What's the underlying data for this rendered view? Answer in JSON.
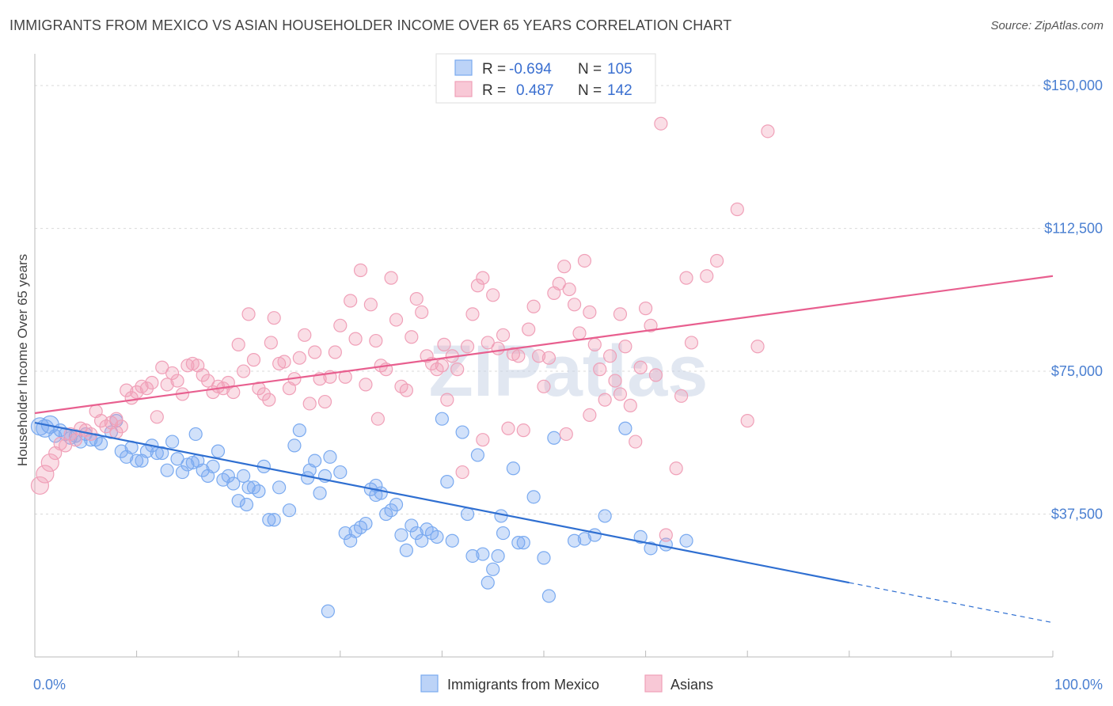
{
  "title": "IMMIGRANTS FROM MEXICO VS ASIAN HOUSEHOLDER INCOME OVER 65 YEARS CORRELATION CHART",
  "source": "Source: ZipAtlas.com",
  "watermark": "ZIPatlas",
  "chart_data": {
    "type": "scatter",
    "title": "IMMIGRANTS FROM MEXICO VS ASIAN HOUSEHOLDER INCOME OVER 65 YEARS CORRELATION CHART",
    "xlabel": "",
    "ylabel": "Householder Income Over 65 years",
    "xlim": [
      0,
      100
    ],
    "ylim": [
      0,
      157500
    ],
    "x_tick_labels": [
      "0.0%",
      "100.0%"
    ],
    "y_ticks": [
      {
        "value": 37500,
        "label": "$37,500"
      },
      {
        "value": 75000,
        "label": "$75,000"
      },
      {
        "value": 112500,
        "label": "$112,500"
      },
      {
        "value": 150000,
        "label": "$150,000"
      }
    ],
    "grid": true,
    "legend_position": "top-center",
    "stats": [
      {
        "r_label": "R =",
        "r_value": "-0.694",
        "n_label": "N =",
        "n_value": "105"
      },
      {
        "r_label": "R =",
        "r_value": "0.487",
        "n_label": "N =",
        "n_value": "142"
      }
    ],
    "series": [
      {
        "name": "Immigrants from Mexico",
        "color": "#7aaaf0",
        "line_color": "#2f6fd1",
        "trend": {
          "x": [
            0,
            80
          ],
          "y": [
            61500,
            19500
          ],
          "dashed_to": [
            100,
            9000
          ]
        },
        "points": [
          [
            0.5,
            60500
          ],
          [
            1,
            60000
          ],
          [
            1.5,
            61000
          ],
          [
            2,
            58000
          ],
          [
            2.5,
            59500
          ],
          [
            3,
            58500
          ],
          [
            3.5,
            57500
          ],
          [
            4,
            58000
          ],
          [
            4.5,
            56500
          ],
          [
            5,
            58500
          ],
          [
            5.5,
            57000
          ],
          [
            6,
            57000
          ],
          [
            6.5,
            56000
          ],
          [
            7.5,
            59000
          ],
          [
            8,
            62000
          ],
          [
            8.5,
            54000
          ],
          [
            9,
            52500
          ],
          [
            9.5,
            55000
          ],
          [
            10,
            51500
          ],
          [
            10.5,
            51500
          ],
          [
            11,
            54000
          ],
          [
            11.5,
            55500
          ],
          [
            12,
            53500
          ],
          [
            12.5,
            53500
          ],
          [
            13,
            49000
          ],
          [
            13.5,
            56500
          ],
          [
            14,
            52000
          ],
          [
            14.5,
            48500
          ],
          [
            15,
            50500
          ],
          [
            15.5,
            51000
          ],
          [
            16,
            51500
          ],
          [
            16.5,
            49000
          ],
          [
            17,
            47500
          ],
          [
            17.5,
            50000
          ],
          [
            18,
            54000
          ],
          [
            18.5,
            46500
          ],
          [
            19,
            47500
          ],
          [
            19.5,
            45500
          ],
          [
            20,
            41000
          ],
          [
            20.5,
            47500
          ],
          [
            21,
            44500
          ],
          [
            21.5,
            44500
          ],
          [
            22,
            43500
          ],
          [
            22.5,
            50000
          ],
          [
            23,
            36000
          ],
          [
            23.5,
            36000
          ],
          [
            24,
            44500
          ],
          [
            25,
            38500
          ],
          [
            25.5,
            55500
          ],
          [
            26,
            59500
          ],
          [
            27,
            49000
          ],
          [
            27.5,
            51500
          ],
          [
            28,
            43000
          ],
          [
            28.5,
            47500
          ],
          [
            29,
            52500
          ],
          [
            30,
            48500
          ],
          [
            30.5,
            32500
          ],
          [
            31,
            30500
          ],
          [
            31.5,
            33000
          ],
          [
            32,
            34000
          ],
          [
            32.5,
            35000
          ],
          [
            33,
            44000
          ],
          [
            33.5,
            42500
          ],
          [
            34,
            43000
          ],
          [
            34.5,
            37500
          ],
          [
            35,
            38500
          ],
          [
            35.5,
            40000
          ],
          [
            36,
            32000
          ],
          [
            36.5,
            28000
          ],
          [
            37,
            34500
          ],
          [
            37.5,
            32500
          ],
          [
            38,
            30500
          ],
          [
            39,
            32500
          ],
          [
            39.5,
            31500
          ],
          [
            40,
            62500
          ],
          [
            40.5,
            46000
          ],
          [
            41,
            30500
          ],
          [
            42,
            59000
          ],
          [
            42.5,
            37500
          ],
          [
            43,
            26500
          ],
          [
            43.5,
            53000
          ],
          [
            44,
            27000
          ],
          [
            44.5,
            19500
          ],
          [
            45,
            23000
          ],
          [
            45.5,
            26500
          ],
          [
            46,
            32500
          ],
          [
            47,
            49500
          ],
          [
            47.5,
            30000
          ],
          [
            48,
            30000
          ],
          [
            49,
            42000
          ],
          [
            50,
            26000
          ],
          [
            50.5,
            16000
          ],
          [
            51,
            57500
          ],
          [
            53,
            30500
          ],
          [
            54,
            31000
          ],
          [
            55,
            32000
          ],
          [
            58,
            60000
          ],
          [
            59.5,
            31500
          ],
          [
            60.5,
            28500
          ],
          [
            62,
            29500
          ],
          [
            64,
            30500
          ],
          [
            56,
            37000
          ],
          [
            45.8,
            37000
          ],
          [
            28.8,
            12000
          ],
          [
            26.8,
            47000
          ],
          [
            20.8,
            40000
          ],
          [
            15.8,
            58500
          ],
          [
            38.5,
            33500
          ],
          [
            33.5,
            45000
          ]
        ]
      },
      {
        "name": "Asians",
        "color": "#f0a0b8",
        "line_color": "#e85f8f",
        "trend": {
          "x": [
            0,
            100
          ],
          "y": [
            64000,
            100000
          ]
        },
        "points": [
          [
            0.5,
            45000
          ],
          [
            1,
            48000
          ],
          [
            1.5,
            51000
          ],
          [
            2,
            53500
          ],
          [
            2.5,
            56000
          ],
          [
            3,
            55500
          ],
          [
            3.5,
            58500
          ],
          [
            4,
            57000
          ],
          [
            4.5,
            60000
          ],
          [
            5,
            59500
          ],
          [
            5.5,
            58500
          ],
          [
            6,
            64500
          ],
          [
            6.5,
            62000
          ],
          [
            7,
            60500
          ],
          [
            7.5,
            61500
          ],
          [
            8,
            62500
          ],
          [
            8.5,
            60500
          ],
          [
            9,
            70000
          ],
          [
            9.5,
            68000
          ],
          [
            10,
            69500
          ],
          [
            10.5,
            71000
          ],
          [
            11,
            70500
          ],
          [
            11.5,
            72000
          ],
          [
            12,
            63000
          ],
          [
            12.5,
            76000
          ],
          [
            13,
            71500
          ],
          [
            13.5,
            74500
          ],
          [
            14,
            72500
          ],
          [
            14.5,
            69000
          ],
          [
            15,
            76500
          ],
          [
            15.5,
            77000
          ],
          [
            16,
            76500
          ],
          [
            16.5,
            74000
          ],
          [
            17,
            72500
          ],
          [
            17.5,
            69500
          ],
          [
            18,
            71000
          ],
          [
            18.5,
            70500
          ],
          [
            19,
            72000
          ],
          [
            19.5,
            69500
          ],
          [
            20,
            82000
          ],
          [
            20.5,
            75000
          ],
          [
            21,
            90000
          ],
          [
            21.5,
            78000
          ],
          [
            22,
            70500
          ],
          [
            22.5,
            69000
          ],
          [
            23,
            67500
          ],
          [
            23.5,
            89000
          ],
          [
            24,
            77000
          ],
          [
            24.5,
            77500
          ],
          [
            25,
            70500
          ],
          [
            25.5,
            73000
          ],
          [
            26,
            78500
          ],
          [
            26.5,
            84500
          ],
          [
            27,
            66500
          ],
          [
            27.5,
            80000
          ],
          [
            28,
            73000
          ],
          [
            28.5,
            67000
          ],
          [
            29,
            73500
          ],
          [
            29.5,
            80000
          ],
          [
            30,
            87000
          ],
          [
            30.5,
            73500
          ],
          [
            31,
            93500
          ],
          [
            31.5,
            83500
          ],
          [
            32,
            101500
          ],
          [
            32.5,
            71500
          ],
          [
            33,
            92500
          ],
          [
            33.5,
            83000
          ],
          [
            34,
            76500
          ],
          [
            34.5,
            75500
          ],
          [
            35,
            99500
          ],
          [
            35.5,
            88500
          ],
          [
            36,
            71000
          ],
          [
            36.5,
            70000
          ],
          [
            37,
            84000
          ],
          [
            37.5,
            94000
          ],
          [
            38,
            90500
          ],
          [
            38.5,
            79000
          ],
          [
            39,
            77000
          ],
          [
            39.5,
            75500
          ],
          [
            40,
            76500
          ],
          [
            40.5,
            67500
          ],
          [
            41,
            79000
          ],
          [
            41.5,
            75500
          ],
          [
            42,
            48500
          ],
          [
            42.5,
            81500
          ],
          [
            43,
            90000
          ],
          [
            43.5,
            97500
          ],
          [
            44,
            99500
          ],
          [
            44.5,
            82500
          ],
          [
            45,
            95000
          ],
          [
            45.5,
            81000
          ],
          [
            46,
            84500
          ],
          [
            46.5,
            60000
          ],
          [
            47,
            79500
          ],
          [
            47.5,
            79000
          ],
          [
            48,
            59500
          ],
          [
            48.5,
            86000
          ],
          [
            49,
            92000
          ],
          [
            49.5,
            79000
          ],
          [
            50,
            71000
          ],
          [
            50.5,
            78500
          ],
          [
            51,
            95500
          ],
          [
            51.5,
            98000
          ],
          [
            52,
            102500
          ],
          [
            52.5,
            96500
          ],
          [
            53,
            92500
          ],
          [
            53.5,
            85000
          ],
          [
            54,
            104000
          ],
          [
            54.5,
            90500
          ],
          [
            55,
            82000
          ],
          [
            55.5,
            75500
          ],
          [
            56,
            67500
          ],
          [
            56.5,
            79000
          ],
          [
            57,
            72500
          ],
          [
            57.5,
            90000
          ],
          [
            58,
            81500
          ],
          [
            58.5,
            66000
          ],
          [
            59,
            56500
          ],
          [
            59.5,
            76000
          ],
          [
            60,
            91500
          ],
          [
            60.5,
            87000
          ],
          [
            61,
            74000
          ],
          [
            62,
            32000
          ],
          [
            63,
            49500
          ],
          [
            63.5,
            68500
          ],
          [
            64,
            99500
          ],
          [
            64.5,
            82500
          ],
          [
            66,
            100000
          ],
          [
            67,
            104000
          ],
          [
            69,
            117500
          ],
          [
            71,
            81500
          ],
          [
            72,
            138000
          ],
          [
            70,
            62000
          ],
          [
            44,
            57000
          ],
          [
            8,
            59000
          ],
          [
            61.5,
            140000
          ],
          [
            40.2,
            82000
          ],
          [
            33.7,
            62500
          ],
          [
            52.2,
            58500
          ],
          [
            57.5,
            69000
          ],
          [
            54.5,
            63500
          ],
          [
            23.2,
            82500
          ]
        ]
      }
    ]
  }
}
